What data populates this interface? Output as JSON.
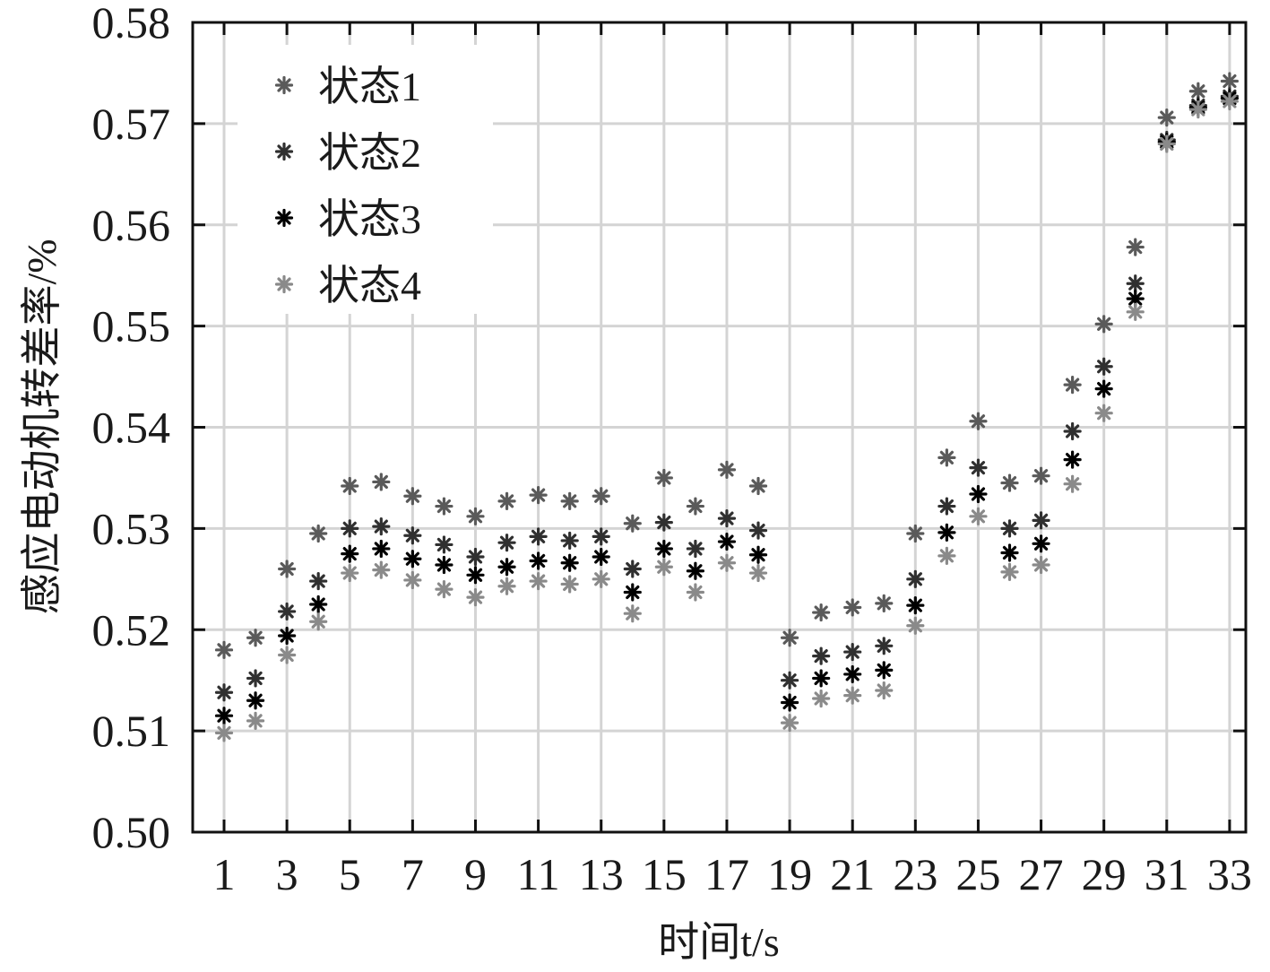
{
  "chart_data": {
    "type": "scatter",
    "xlabel": "时间t/s",
    "ylabel": "感应电动机转差率/%",
    "xlim": [
      0,
      34
    ],
    "ylim": [
      0.5,
      0.58
    ],
    "yticks": [
      "0.50",
      "0.51",
      "0.52",
      "0.53",
      "0.54",
      "0.55",
      "0.56",
      "0.57",
      "0.58"
    ],
    "xticks": [
      "1",
      "3",
      "5",
      "7",
      "9",
      "11",
      "13",
      "15",
      "17",
      "19",
      "21",
      "23",
      "25",
      "27",
      "29",
      "31",
      "33"
    ],
    "grid": true,
    "legend_position": "top-left",
    "marker": "asterisk",
    "x": [
      1,
      2,
      3,
      4,
      5,
      6,
      7,
      8,
      9,
      10,
      11,
      12,
      13,
      14,
      15,
      16,
      17,
      18,
      19,
      20,
      21,
      22,
      23,
      24,
      25,
      26,
      27,
      28,
      29,
      30,
      31,
      32,
      33
    ],
    "series": [
      {
        "name": "状态1",
        "color": "#5a5a5a",
        "values": [
          0.518,
          0.5192,
          0.526,
          0.5295,
          0.5342,
          0.5346,
          0.5332,
          0.5322,
          0.5312,
          0.5327,
          0.5333,
          0.5327,
          0.5332,
          0.5305,
          0.535,
          0.5322,
          0.5358,
          0.5342,
          0.5192,
          0.5217,
          0.5222,
          0.5226,
          0.5295,
          0.537,
          0.5406,
          0.5345,
          0.5352,
          0.5442,
          0.5502,
          0.5578,
          0.5706,
          0.5732,
          0.5742
        ]
      },
      {
        "name": "状态2",
        "color": "#303030",
        "values": [
          0.5138,
          0.5152,
          0.5218,
          0.5248,
          0.53,
          0.5302,
          0.5293,
          0.5284,
          0.5272,
          0.5286,
          0.5292,
          0.5288,
          0.5292,
          0.526,
          0.5306,
          0.528,
          0.531,
          0.5298,
          0.515,
          0.5174,
          0.5178,
          0.5184,
          0.525,
          0.5322,
          0.536,
          0.53,
          0.5308,
          0.5396,
          0.546,
          0.5542,
          0.5684,
          0.5718,
          0.5727
        ]
      },
      {
        "name": "状态3",
        "color": "#000000",
        "values": [
          0.5115,
          0.513,
          0.5194,
          0.5225,
          0.5275,
          0.528,
          0.527,
          0.5264,
          0.5254,
          0.5262,
          0.5268,
          0.5266,
          0.5272,
          0.5237,
          0.528,
          0.5258,
          0.5287,
          0.5274,
          0.5128,
          0.5152,
          0.5156,
          0.516,
          0.5224,
          0.5296,
          0.5334,
          0.5276,
          0.5285,
          0.5368,
          0.5438,
          0.5527,
          0.5682,
          0.5716,
          0.5725
        ]
      },
      {
        "name": "状态4",
        "color": "#8a8a8a",
        "values": [
          0.5098,
          0.511,
          0.5175,
          0.5208,
          0.5256,
          0.5259,
          0.5249,
          0.524,
          0.5232,
          0.5243,
          0.5248,
          0.5245,
          0.525,
          0.5216,
          0.5262,
          0.5237,
          0.5266,
          0.5256,
          0.5108,
          0.5132,
          0.5135,
          0.514,
          0.5204,
          0.5273,
          0.5312,
          0.5257,
          0.5264,
          0.5344,
          0.5414,
          0.5514,
          0.568,
          0.5714,
          0.5722
        ]
      }
    ]
  }
}
